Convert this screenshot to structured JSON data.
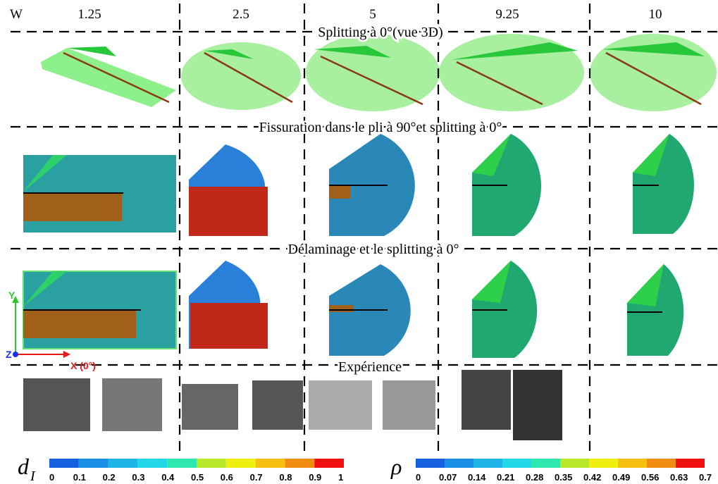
{
  "header": {
    "w_label": "W",
    "columns": [
      "1.25",
      "2.5",
      "5",
      "9.25",
      "10"
    ]
  },
  "rows": [
    "Splitting à 0°(vue 3D)",
    "Fissuration dans le pli à 90°et splitting à 0°",
    "Délaminage et le splitting à 0°",
    "Expérience"
  ],
  "axes": {
    "y": "Y",
    "z": "Z",
    "x": "X (0°)"
  },
  "colorbars": [
    {
      "symbol": "d",
      "subscript": "I",
      "ticks": [
        "0",
        "0.1",
        "0.2",
        "0.3",
        "0.4",
        "0.5",
        "0.6",
        "0.7",
        "0.8",
        "0.9",
        "1"
      ]
    },
    {
      "symbol": "ρ",
      "ticks": [
        "0",
        "0.07",
        "0.14",
        "0.21",
        "0.28",
        "0.35",
        "0.42",
        "0.49",
        "0.56",
        "0.63",
        "0.7"
      ]
    }
  ]
}
